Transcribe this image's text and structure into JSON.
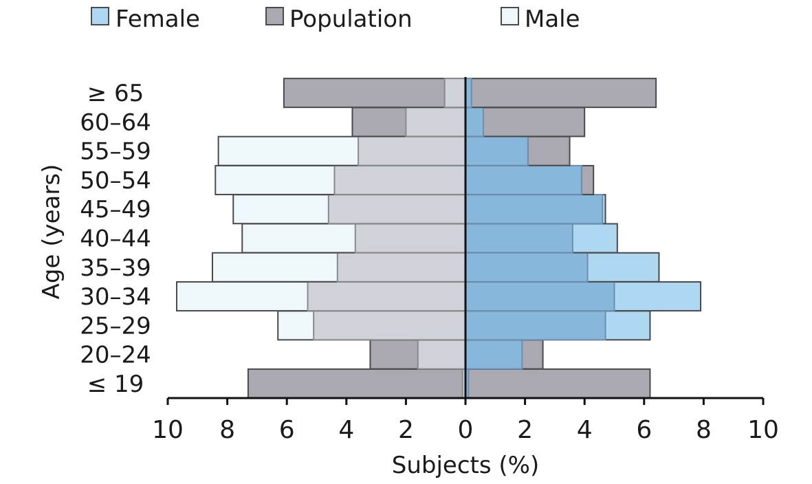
{
  "chart_data": {
    "type": "bar",
    "subtype": "population-pyramid",
    "orientation": "horizontal",
    "xlabel": "Subjects (%)",
    "ylabel": "Age (years)",
    "xlim": [
      -10,
      10
    ],
    "x_ticks": [
      -10,
      -8,
      -6,
      -4,
      -2,
      0,
      2,
      4,
      6,
      8,
      10
    ],
    "x_tick_labels": [
      "10",
      "8",
      "6",
      "4",
      "2",
      "0",
      "2",
      "4",
      "6",
      "8",
      "10"
    ],
    "categories": [
      "≤ 19",
      "20–24",
      "25–29",
      "30–34",
      "35–39",
      "40–44",
      "45–49",
      "50–54",
      "55–59",
      "60–64",
      "≥ 65"
    ],
    "legend": {
      "position": "top",
      "items": [
        {
          "key": "female",
          "label": "Female",
          "color": "#aed8f2"
        },
        {
          "key": "population",
          "label": "Population",
          "color": "#aaa8b1"
        },
        {
          "key": "male",
          "label": "Male",
          "color": "#eef7f9"
        }
      ]
    },
    "series": [
      {
        "name": "Male",
        "side": "left",
        "color": "#eef7f9",
        "values": [
          0.1,
          1.6,
          6.3,
          9.7,
          8.5,
          7.5,
          7.8,
          8.4,
          8.3,
          2.0,
          0.7
        ]
      },
      {
        "name": "Female",
        "side": "right",
        "color": "#aed8f2",
        "values": [
          0.1,
          1.9,
          6.2,
          7.9,
          6.5,
          5.1,
          4.7,
          3.9,
          2.1,
          0.6,
          0.2
        ]
      },
      {
        "name": "Population",
        "side": "both",
        "color": "#aaa8b1",
        "left_values": [
          7.3,
          3.2,
          5.1,
          5.3,
          4.3,
          3.7,
          4.6,
          4.4,
          3.6,
          3.8,
          6.1
        ],
        "right_values": [
          6.2,
          2.6,
          4.7,
          5.0,
          4.1,
          3.6,
          4.6,
          4.3,
          3.5,
          4.0,
          6.4
        ]
      }
    ],
    "grid": false
  }
}
